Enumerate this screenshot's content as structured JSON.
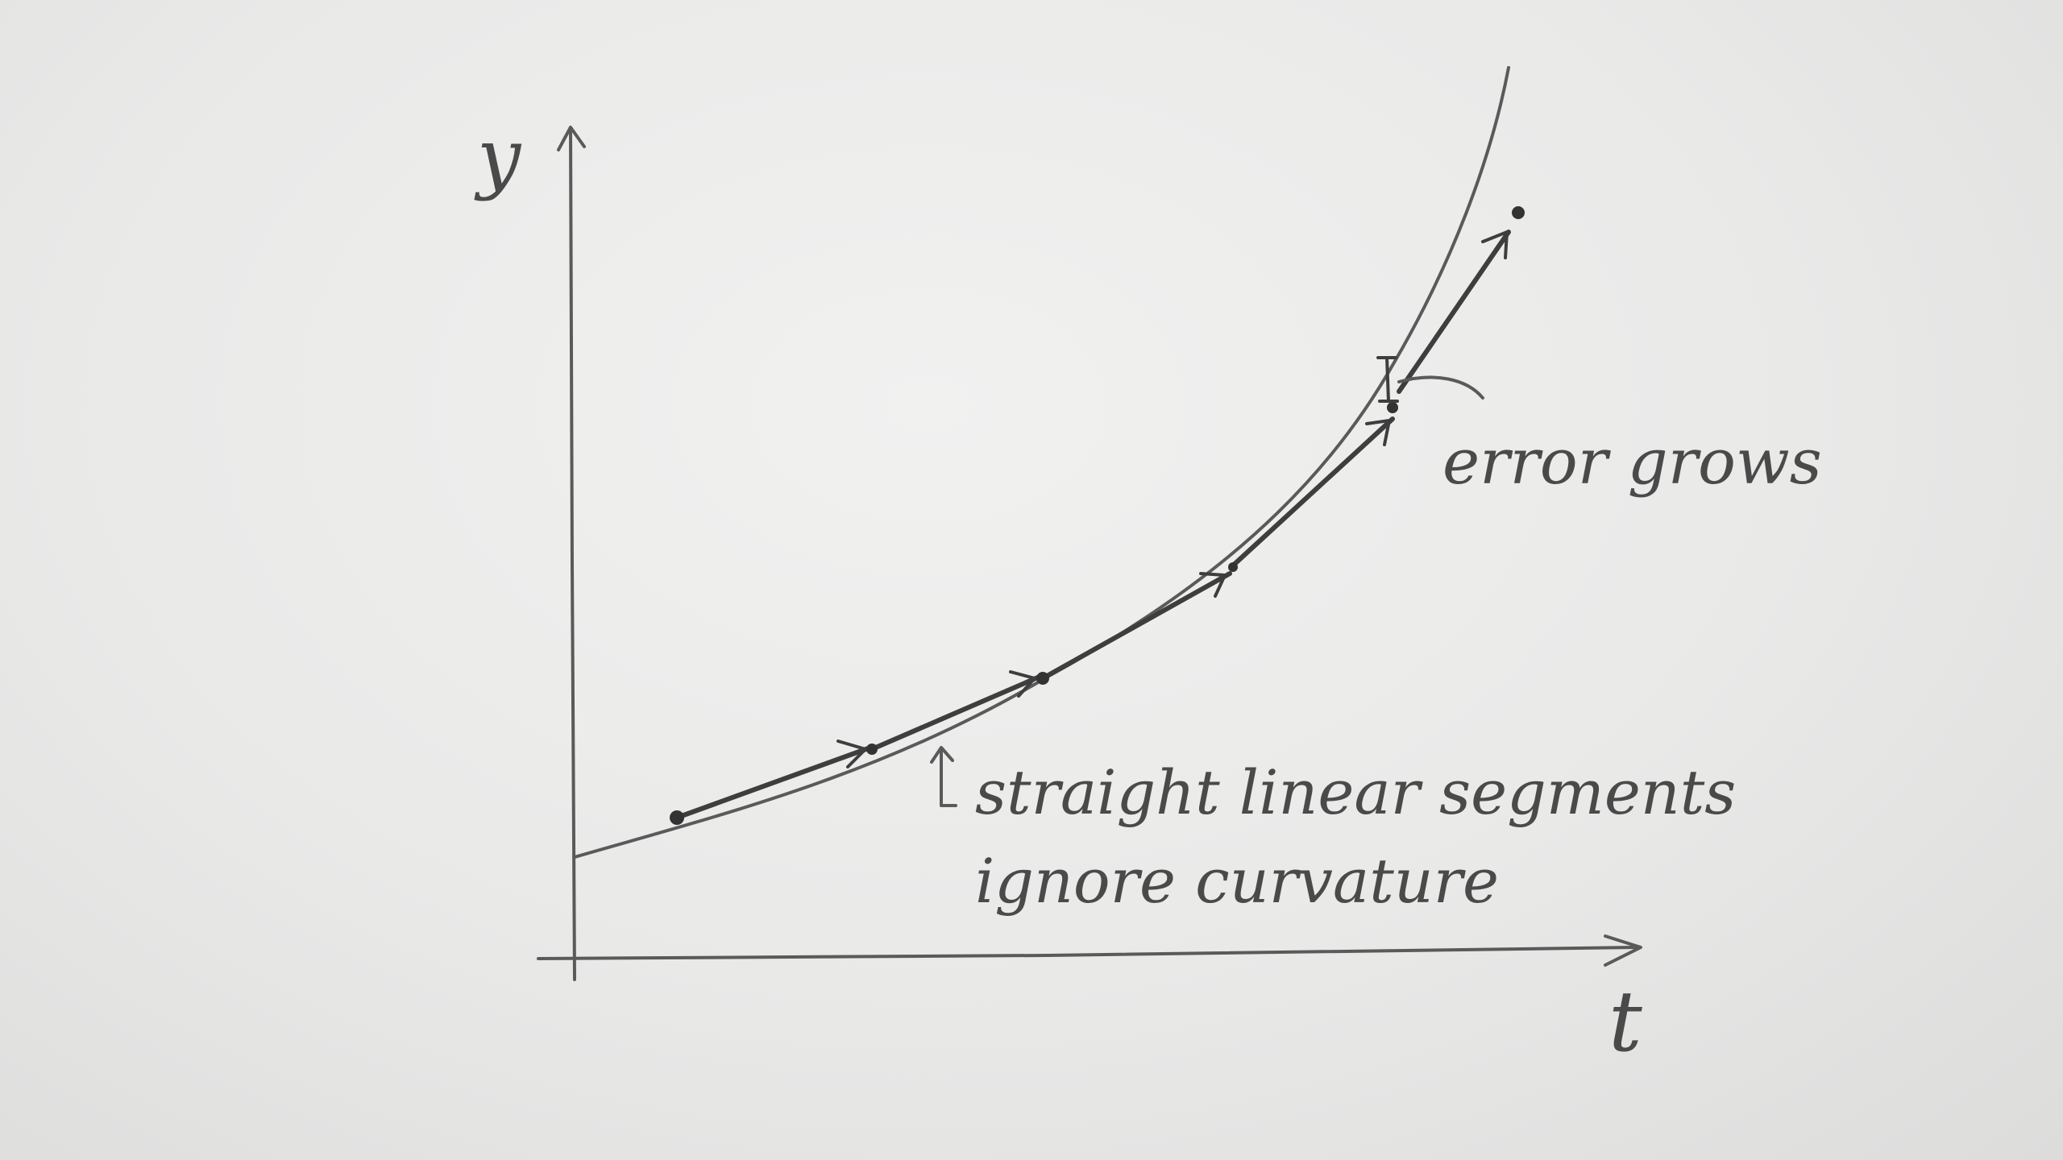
{
  "diagram": {
    "axes": {
      "y_label": "y",
      "x_label": "t"
    },
    "annotations": {
      "error": "error grows",
      "segments_line1": "straight linear segments",
      "segments_line2": "ignore curvature"
    }
  },
  "colors": {
    "paper": "#e9e9e8",
    "pencil": "#5a5a5a"
  }
}
